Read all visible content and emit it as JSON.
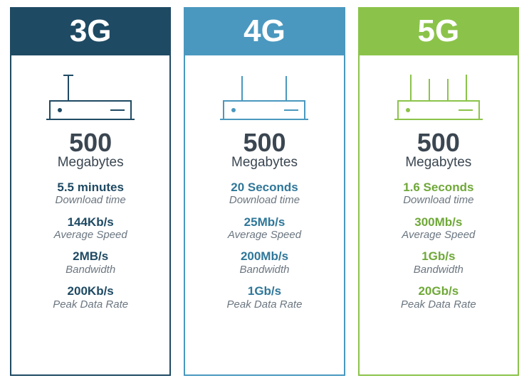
{
  "type": "infographic",
  "background_color": "#ffffff",
  "text_color_dark": "#3a4651",
  "text_color_muted": "#6b7680",
  "icon_stroke_width": 2,
  "cards": [
    {
      "title": "3G",
      "header_bg": "#1f4a63",
      "border_color": "#1f4a63",
      "accent_color": "#1f4a63",
      "icon_color": "#1f4a63",
      "antennas": 1,
      "size_value": "500",
      "size_unit": "Megabytes",
      "metrics": [
        {
          "value": "5.5 minutes",
          "label": "Download time"
        },
        {
          "value": "144Kb/s",
          "label": "Average Speed"
        },
        {
          "value": "2MB/s",
          "label": "Bandwidth"
        },
        {
          "value": "200Kb/s",
          "label": "Peak Data Rate"
        }
      ]
    },
    {
      "title": "4G",
      "header_bg": "#4a98bf",
      "border_color": "#4a98bf",
      "accent_color": "#2f7799",
      "icon_color": "#4a98bf",
      "antennas": 2,
      "size_value": "500",
      "size_unit": "Megabytes",
      "metrics": [
        {
          "value": "20 Seconds",
          "label": "Download time"
        },
        {
          "value": "25Mb/s",
          "label": "Average Speed"
        },
        {
          "value": "200Mb/s",
          "label": "Bandwidth"
        },
        {
          "value": "1Gb/s",
          "label": "Peak Data Rate"
        }
      ]
    },
    {
      "title": "5G",
      "header_bg": "#8bc34a",
      "border_color": "#8bc34a",
      "accent_color": "#6fa838",
      "icon_color": "#8bc34a",
      "antennas": 4,
      "size_value": "500",
      "size_unit": "Megabytes",
      "metrics": [
        {
          "value": "1.6 Seconds",
          "label": "Download time"
        },
        {
          "value": "300Mb/s",
          "label": "Average Speed"
        },
        {
          "value": "1Gb/s",
          "label": "Bandwidth"
        },
        {
          "value": "20Gb/s",
          "label": "Peak Data Rate"
        }
      ]
    }
  ]
}
